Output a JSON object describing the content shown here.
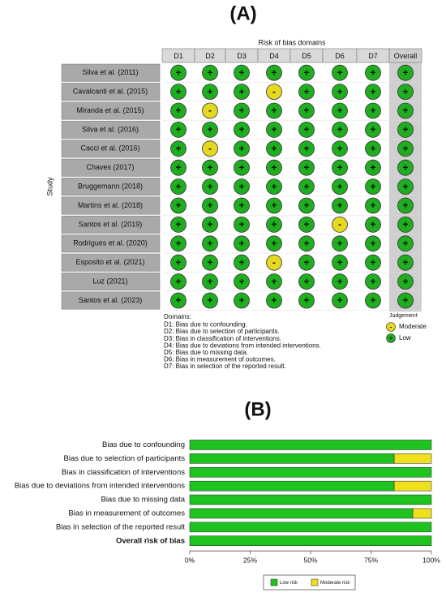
{
  "panel_a": {
    "title": "(A)",
    "header": "Risk of bias domains",
    "columns": [
      "D1",
      "D2",
      "D3",
      "D4",
      "D5",
      "D6",
      "D7",
      "Overall"
    ],
    "y_label": "Study",
    "studies": [
      "Silva et al. (2011)",
      "Cavalcanti et al. (2015)",
      "Miranda et al. (2015)",
      "Silva et al. (2016)",
      "Cacci et al. (2016)",
      "Chaves (2017)",
      "Bruggemann (2018)",
      "Martins et al. (2018)",
      "Santos et al. (2019)",
      "Rodrigues et al. (2020)",
      "Esposito et al. (2021)",
      "Luz (2021)",
      "Santos et al. (2023)"
    ],
    "cells": [
      [
        "+",
        "+",
        "+",
        "+",
        "+",
        "+",
        "+",
        "+"
      ],
      [
        "+",
        "+",
        "+",
        "-",
        "+",
        "+",
        "+",
        "+"
      ],
      [
        "+",
        "-",
        "+",
        "+",
        "+",
        "+",
        "+",
        "+"
      ],
      [
        "+",
        "+",
        "+",
        "+",
        "+",
        "+",
        "+",
        "+"
      ],
      [
        "+",
        "-",
        "+",
        "+",
        "+",
        "+",
        "+",
        "+"
      ],
      [
        "+",
        "+",
        "+",
        "+",
        "+",
        "+",
        "+",
        "+"
      ],
      [
        "+",
        "+",
        "+",
        "+",
        "+",
        "+",
        "+",
        "+"
      ],
      [
        "+",
        "+",
        "+",
        "+",
        "+",
        "+",
        "+",
        "+"
      ],
      [
        "+",
        "+",
        "+",
        "+",
        "+",
        "-",
        "+",
        "+"
      ],
      [
        "+",
        "+",
        "+",
        "+",
        "+",
        "+",
        "+",
        "+"
      ],
      [
        "+",
        "+",
        "+",
        "-",
        "+",
        "+",
        "+",
        "+"
      ],
      [
        "+",
        "+",
        "+",
        "+",
        "+",
        "+",
        "+",
        "+"
      ],
      [
        "+",
        "+",
        "+",
        "+",
        "+",
        "+",
        "+",
        "+"
      ]
    ],
    "domains_title": "Domains:",
    "domains": [
      "D1: Bias due to confounding.",
      "D2: Bias due to selection of participants.",
      "D3: Bias in classification of interventions.",
      "D4: Bias due to deviations from intended interventions.",
      "D5: Bias due to missing data.",
      "D6: Bias in measurement of outcomes.",
      "D7: Bias in selection of the reported result."
    ],
    "judgement_title": "Judgement",
    "judgements": [
      {
        "symbol": "-",
        "label": "Moderate",
        "color": "#e6d820"
      },
      {
        "symbol": "+",
        "label": "Low",
        "color": "#1fae1f"
      }
    ]
  },
  "chart_data": {
    "type": "stacked_bar_horizontal",
    "title": "(B)",
    "categories": [
      "Bias due to confounding",
      "Bias due to selection of participants",
      "Bias in classification of interventions",
      "Bias due to deviations from intended interventions",
      "Bias due to missing data",
      "Bias in measurement of outcomes",
      "Bias in selection of the reported result",
      "Overall risk of bias"
    ],
    "series": [
      {
        "name": "Low risk",
        "color": "#1ec31e",
        "values": [
          100,
          84.6,
          100,
          84.6,
          100,
          92.3,
          100,
          100
        ]
      },
      {
        "name": "Moderate risk",
        "color": "#eee01c",
        "values": [
          0,
          15.4,
          0,
          15.4,
          0,
          7.7,
          0,
          0
        ]
      }
    ],
    "xlim": [
      0,
      100
    ],
    "xticks": [
      {
        "value": 0,
        "label": "0%"
      },
      {
        "value": 25,
        "label": "25%"
      },
      {
        "value": 50,
        "label": "50%"
      },
      {
        "value": 75,
        "label": "75%"
      },
      {
        "value": 100,
        "label": "100%"
      }
    ],
    "legend": "bottom"
  }
}
